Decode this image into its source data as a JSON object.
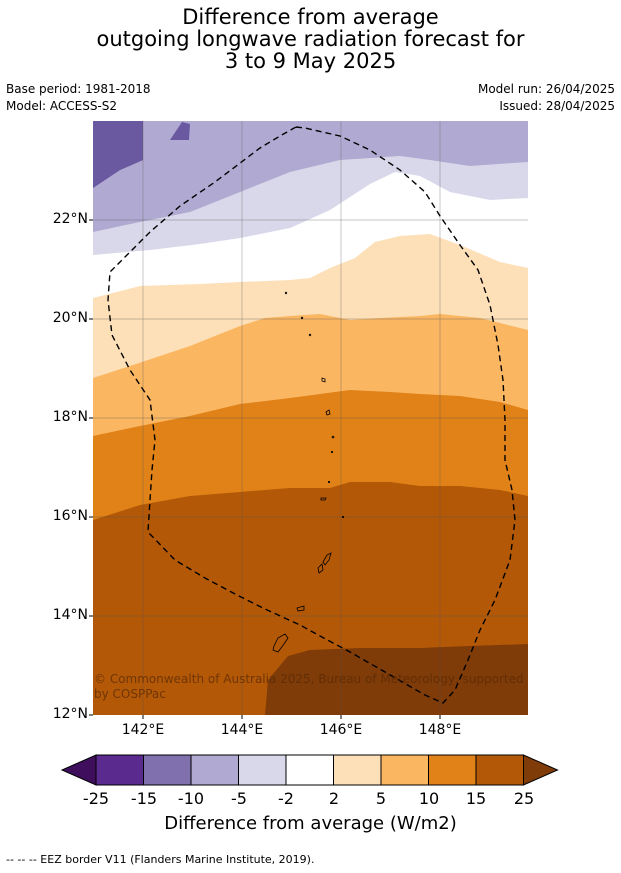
{
  "title": {
    "line1": "Difference from average",
    "line2": "outgoing longwave radiation forecast for",
    "line3": "3 to 9 May 2025"
  },
  "meta": {
    "base_period": "Base period: 1981-2018",
    "model": "Model: ACCESS-S2",
    "model_run": "Model run: 26/04/2025",
    "issued": "Issued: 28/04/2025"
  },
  "map": {
    "lat_labels": [
      "22°N",
      "20°N",
      "18°N",
      "16°N",
      "14°N",
      "12°N"
    ],
    "lon_labels": [
      "142°E",
      "144°E",
      "146°E",
      "148°E"
    ],
    "copyright": "© Commonwealth of Australia 2025, Bureau of Meteorology, supported by COSPPac"
  },
  "colorbar": {
    "ticks": [
      "-25",
      "-15",
      "-10",
      "-5",
      "-2",
      "2",
      "5",
      "10",
      "15",
      "25"
    ],
    "colors": [
      "#3f0e5c",
      "#5a2a8e",
      "#8070ad",
      "#b0a9d1",
      "#d9d8ea",
      "#ffffff",
      "#fde0b8",
      "#fbb662",
      "#e08217",
      "#b35806",
      "#7f3b08"
    ],
    "title": "Difference from average (W/m2)"
  },
  "footer": {
    "legend": "--  --  -- EEZ border V11 (Flanders Marine Institute, 2019)."
  }
}
